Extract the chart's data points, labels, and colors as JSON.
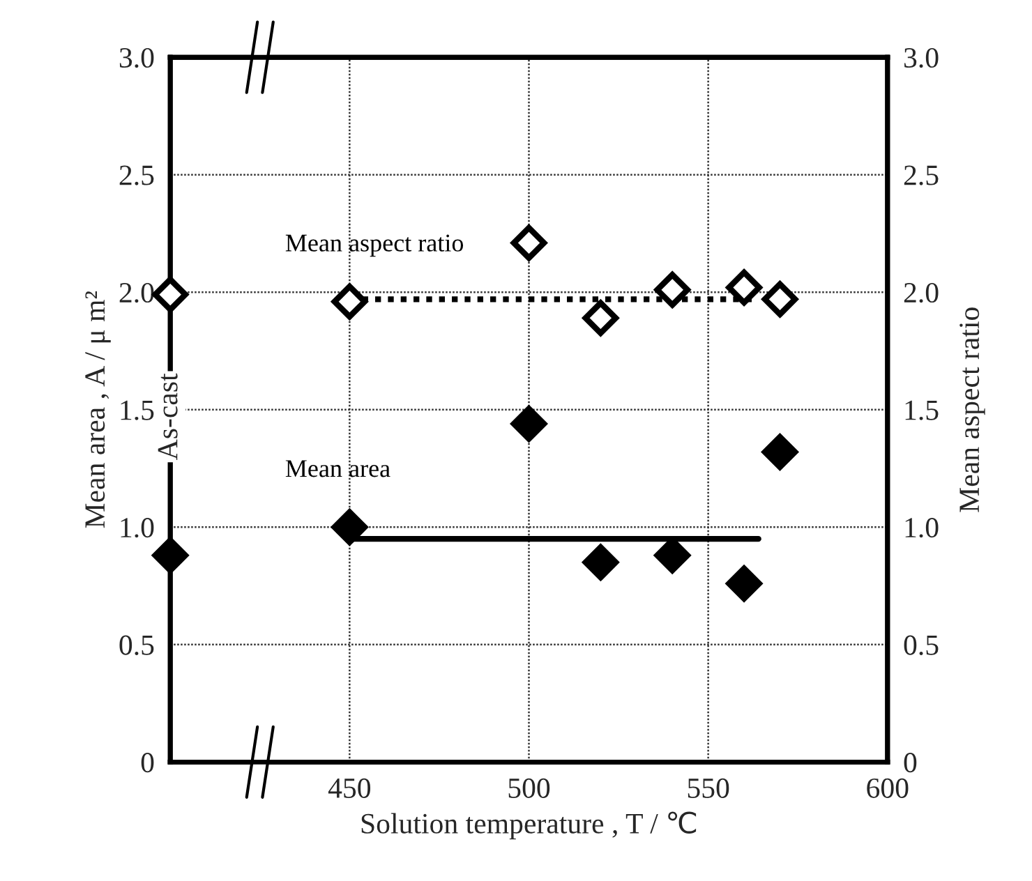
{
  "chart_data": {
    "type": "scatter",
    "xlabel": "Solution temperature , T / ℃",
    "ylabel": "Mean area , A / μ m²",
    "y2label": "Mean aspect ratio",
    "xlim": [
      400,
      600
    ],
    "xticks": [
      450,
      500,
      550,
      600
    ],
    "ylim": [
      0,
      3.0
    ],
    "yticks": [
      {
        "value": 0,
        "label": "0"
      },
      {
        "value": 0.5,
        "label": "0.5"
      },
      {
        "value": 1.0,
        "label": "1.0"
      },
      {
        "value": 1.5,
        "label": "1.5"
      },
      {
        "value": 2.0,
        "label": "2.0"
      },
      {
        "value": 2.5,
        "label": "2.5"
      },
      {
        "value": 3.0,
        "label": "3.0"
      }
    ],
    "y2lim": [
      0,
      3.0
    ],
    "y2ticks": [
      {
        "value": 0,
        "label": "0"
      },
      {
        "value": 0.5,
        "label": "0.5"
      },
      {
        "value": 1.0,
        "label": "1.0"
      },
      {
        "value": 1.5,
        "label": "1.5"
      },
      {
        "value": 2.0,
        "label": "2.0"
      },
      {
        "value": 2.5,
        "label": "2.5"
      },
      {
        "value": 3.0,
        "label": "3.0"
      }
    ],
    "grid": true,
    "legend": false,
    "series": [
      {
        "name": "Mean aspect ratio",
        "axis": "y2",
        "color": "#000000",
        "marker": "diamond",
        "x": [
          400,
          450,
          500,
          520,
          540,
          560,
          570
        ],
        "values": [
          1.99,
          1.96,
          2.21,
          1.89,
          2.01,
          2.02,
          1.97
        ]
      },
      {
        "name": "Mean area",
        "color": "#000000",
        "marker": "diamond",
        "x": [
          400,
          450,
          500,
          520,
          540,
          560,
          570
        ],
        "values": [
          0.88,
          1.0,
          1.44,
          0.85,
          0.88,
          0.76,
          1.32
        ]
      },
      {
        "type": "line",
        "axis": "y2",
        "color": "#000000",
        "line_style": "dotted",
        "x": [
          450,
          564
        ],
        "values": [
          1.97,
          1.97
        ]
      },
      {
        "type": "line",
        "color": "#000000",
        "line_style": "solid",
        "x": [
          450,
          564
        ],
        "values": [
          0.95,
          0.95
        ]
      }
    ],
    "annotations": [
      "As-cast"
    ]
  }
}
